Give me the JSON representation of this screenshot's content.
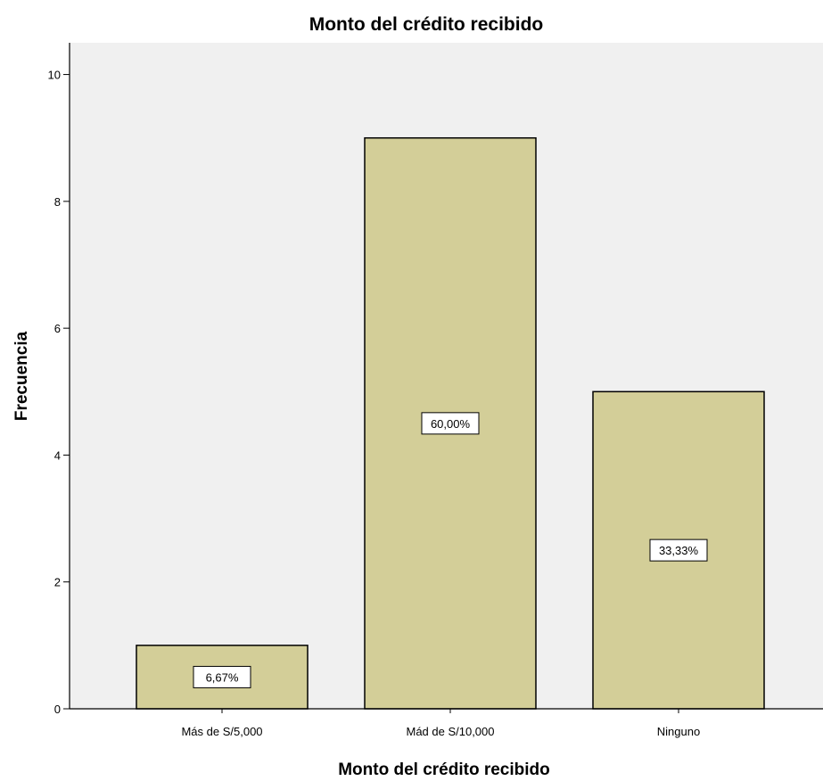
{
  "chart_data": {
    "type": "bar",
    "title": "Monto del crédito recibido",
    "xlabel": "Monto del crédito recibido",
    "ylabel": "Frecuencia",
    "categories": [
      "Más de S/5,000",
      "Mád de S/10,000",
      "Ninguno"
    ],
    "values": [
      1,
      9,
      5
    ],
    "data_labels": [
      "6,67%",
      "60,00%",
      "33,33%"
    ],
    "ylim": [
      0,
      10.5
    ],
    "yticks": [
      0,
      2,
      4,
      6,
      8,
      10
    ],
    "grid": false,
    "colors": {
      "plot_background": "#f0f0f0",
      "bar_fill": "#d3ce98",
      "bar_stroke": "#000000"
    }
  }
}
